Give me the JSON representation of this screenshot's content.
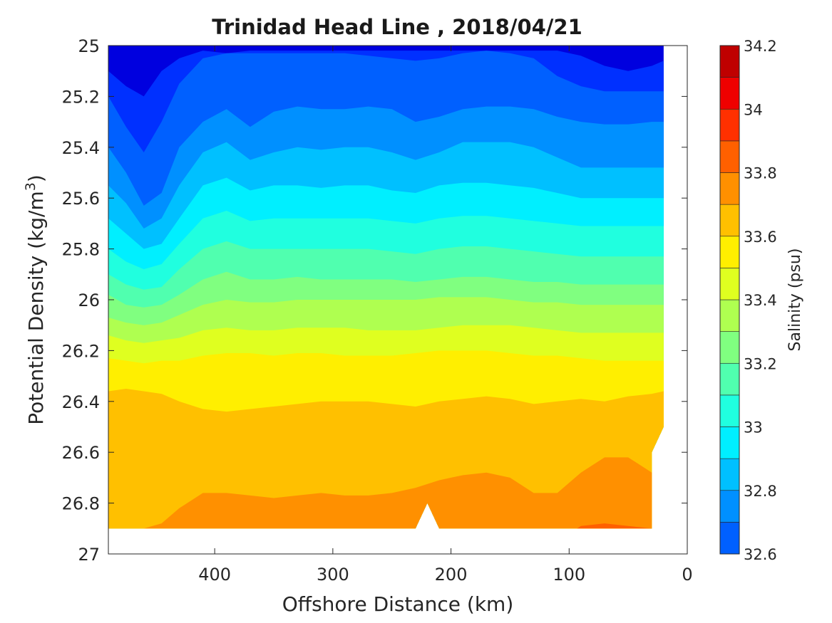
{
  "chart_data": {
    "type": "heatmap",
    "subtype": "filled-contour",
    "title": "Trinidad Head Line , 2018/04/21",
    "xlabel": "Offshore Distance (km)",
    "ylabel": "Potential Density (kg/m³)",
    "ylabel_parts": {
      "main": "Potential Density (kg/m",
      "sup": "3",
      "tail": ")"
    },
    "xlim": [
      490,
      0
    ],
    "x_reversed": true,
    "ylim": [
      25,
      27
    ],
    "y_reversed": true,
    "x_ticks": [
      400,
      300,
      200,
      100,
      0
    ],
    "x_tick_labels": [
      "400",
      "300",
      "200",
      "100",
      "0"
    ],
    "y_ticks": [
      25,
      25.2,
      25.4,
      25.6,
      25.8,
      26,
      26.2,
      26.4,
      26.6,
      26.8,
      27
    ],
    "y_tick_labels": [
      "25",
      "25.2",
      "25.4",
      "25.6",
      "25.8",
      "26",
      "26.2",
      "26.4",
      "26.6",
      "26.8",
      "27"
    ],
    "grid": false,
    "colorbar": {
      "label": "Salinity (psu)",
      "clim": [
        32.6,
        34.2
      ],
      "levels": [
        32.6,
        32.7,
        32.8,
        32.9,
        33.0,
        33.1,
        33.2,
        33.3,
        33.4,
        33.5,
        33.6,
        33.7,
        33.8,
        33.9,
        34.0,
        34.1,
        34.2
      ],
      "tick_values": [
        32.6,
        32.8,
        33,
        33.2,
        33.4,
        33.6,
        33.8,
        34,
        34.2
      ],
      "tick_labels": [
        "32.6",
        "32.8",
        "33",
        "33.2",
        "33.4",
        "33.6",
        "33.8",
        "34",
        "34.2"
      ],
      "colormap": "jet",
      "colors": [
        "#00008f",
        "#0000df",
        "#0030ff",
        "#0060ff",
        "#0090ff",
        "#00c0ff",
        "#00efff",
        "#20ffdf",
        "#50ffaf",
        "#80ff80",
        "#afff50",
        "#dfff20",
        "#ffef00",
        "#ffc000",
        "#ff9000",
        "#ff6000",
        "#ff3000",
        "#ef0000",
        "#bf0000",
        "#900000"
      ]
    },
    "data_extent": {
      "x": [
        20,
        490
      ],
      "y": [
        25,
        26.9
      ]
    },
    "x": [
      490,
      475,
      460,
      445,
      430,
      410,
      390,
      370,
      350,
      330,
      310,
      290,
      270,
      250,
      230,
      210,
      190,
      170,
      150,
      130,
      110,
      90,
      70,
      50,
      30,
      20
    ],
    "y": [
      25,
      25.1,
      25.2,
      25.3,
      25.4,
      25.5,
      25.6,
      25.7,
      25.8,
      25.9,
      26,
      26.1,
      26.2,
      26.3,
      26.4,
      26.5,
      26.6,
      26.7,
      26.8,
      26.9
    ],
    "salinity_contours": [
      {
        "level": 32.8,
        "depth_at_x": [
          25.1,
          25.16,
          25.2,
          25.1,
          25.05,
          25.02,
          25.03,
          25.02,
          25.02,
          25.02,
          25.02,
          25.02,
          25.02,
          25.02,
          25.02,
          25.02,
          25.02,
          25.02,
          25.02,
          25.02,
          25.02,
          25.04,
          25.08,
          25.1,
          25.08,
          25.06
        ]
      },
      {
        "level": 32.9,
        "depth_at_x": [
          25.2,
          25.32,
          25.42,
          25.3,
          25.15,
          25.05,
          25.03,
          25.03,
          25.03,
          25.03,
          25.03,
          25.03,
          25.04,
          25.05,
          25.06,
          25.05,
          25.03,
          25.02,
          25.03,
          25.05,
          25.12,
          25.16,
          25.18,
          25.18,
          25.18,
          25.18
        ]
      },
      {
        "level": 33.0,
        "depth_at_x": [
          25.4,
          25.5,
          25.63,
          25.58,
          25.4,
          25.3,
          25.25,
          25.32,
          25.26,
          25.24,
          25.25,
          25.25,
          25.24,
          25.25,
          25.3,
          25.28,
          25.25,
          25.24,
          25.24,
          25.25,
          25.28,
          25.3,
          25.31,
          25.31,
          25.3,
          25.3
        ]
      },
      {
        "level": 33.1,
        "depth_at_x": [
          25.55,
          25.62,
          25.72,
          25.68,
          25.55,
          25.42,
          25.38,
          25.45,
          25.42,
          25.4,
          25.41,
          25.4,
          25.4,
          25.42,
          25.45,
          25.42,
          25.38,
          25.38,
          25.38,
          25.4,
          25.44,
          25.48,
          25.48,
          25.48,
          25.48,
          25.48
        ]
      },
      {
        "level": 33.2,
        "depth_at_x": [
          25.68,
          25.74,
          25.8,
          25.78,
          25.68,
          25.55,
          25.52,
          25.57,
          25.55,
          25.55,
          25.56,
          25.55,
          25.55,
          25.57,
          25.58,
          25.55,
          25.54,
          25.54,
          25.55,
          25.56,
          25.58,
          25.6,
          25.6,
          25.6,
          25.6,
          25.6
        ]
      },
      {
        "level": 33.3,
        "depth_at_x": [
          25.8,
          25.85,
          25.88,
          25.86,
          25.78,
          25.68,
          25.65,
          25.69,
          25.68,
          25.68,
          25.68,
          25.68,
          25.68,
          25.69,
          25.7,
          25.68,
          25.67,
          25.67,
          25.68,
          25.69,
          25.7,
          25.71,
          25.71,
          25.71,
          25.71,
          25.71
        ]
      },
      {
        "level": 33.4,
        "depth_at_x": [
          25.9,
          25.94,
          25.96,
          25.95,
          25.88,
          25.8,
          25.77,
          25.8,
          25.8,
          25.8,
          25.8,
          25.8,
          25.8,
          25.81,
          25.82,
          25.8,
          25.79,
          25.79,
          25.8,
          25.81,
          25.82,
          25.83,
          25.83,
          25.83,
          25.83,
          25.83
        ]
      },
      {
        "level": 33.5,
        "depth_at_x": [
          25.98,
          26.02,
          26.03,
          26.02,
          25.98,
          25.92,
          25.89,
          25.92,
          25.92,
          25.91,
          25.92,
          25.92,
          25.92,
          25.92,
          25.93,
          25.92,
          25.91,
          25.91,
          25.92,
          25.93,
          25.93,
          25.94,
          25.94,
          25.94,
          25.94,
          25.94
        ]
      },
      {
        "level": 33.6,
        "depth_at_x": [
          26.07,
          26.09,
          26.1,
          26.09,
          26.06,
          26.02,
          26.0,
          26.01,
          26.01,
          26.0,
          26.0,
          26.0,
          26.0,
          26.0,
          26.0,
          25.99,
          25.99,
          25.99,
          26.0,
          26.01,
          26.01,
          26.02,
          26.02,
          26.02,
          26.02,
          26.02
        ]
      },
      {
        "level": 33.7,
        "depth_at_x": [
          26.14,
          26.16,
          26.17,
          26.16,
          26.15,
          26.12,
          26.11,
          26.12,
          26.12,
          26.11,
          26.11,
          26.11,
          26.12,
          26.12,
          26.12,
          26.11,
          26.1,
          26.1,
          26.1,
          26.11,
          26.12,
          26.13,
          26.13,
          26.13,
          26.13,
          26.13
        ]
      },
      {
        "level": 33.8,
        "depth_at_x": [
          26.23,
          26.24,
          26.25,
          26.24,
          26.24,
          26.22,
          26.21,
          26.21,
          26.22,
          26.21,
          26.21,
          26.22,
          26.22,
          26.22,
          26.21,
          26.2,
          26.2,
          26.2,
          26.21,
          26.22,
          26.22,
          26.23,
          26.24,
          26.24,
          26.24,
          26.24
        ]
      },
      {
        "level": 33.9,
        "depth_at_x": [
          26.36,
          26.35,
          26.36,
          26.37,
          26.4,
          26.43,
          26.44,
          26.43,
          26.42,
          26.41,
          26.4,
          26.4,
          26.4,
          26.41,
          26.42,
          26.4,
          26.39,
          26.38,
          26.39,
          26.41,
          26.4,
          26.39,
          26.4,
          26.38,
          26.37,
          26.36
        ]
      },
      {
        "level": 34.0,
        "depth_at_x": [
          26.9,
          26.9,
          26.9,
          26.88,
          26.82,
          26.76,
          26.76,
          26.77,
          26.78,
          26.77,
          26.76,
          26.77,
          26.77,
          26.76,
          26.74,
          26.71,
          26.69,
          26.68,
          26.7,
          26.76,
          26.76,
          26.68,
          26.62,
          26.62,
          26.68,
          26.66
        ]
      },
      {
        "level": 34.1,
        "depth_at_x": [
          26.95,
          26.95,
          26.95,
          26.95,
          26.95,
          26.95,
          26.95,
          26.95,
          26.95,
          26.95,
          26.95,
          26.95,
          26.95,
          26.95,
          26.95,
          26.95,
          26.95,
          26.95,
          26.95,
          26.95,
          26.95,
          26.89,
          26.88,
          26.89,
          26.9,
          26.9
        ]
      }
    ]
  }
}
